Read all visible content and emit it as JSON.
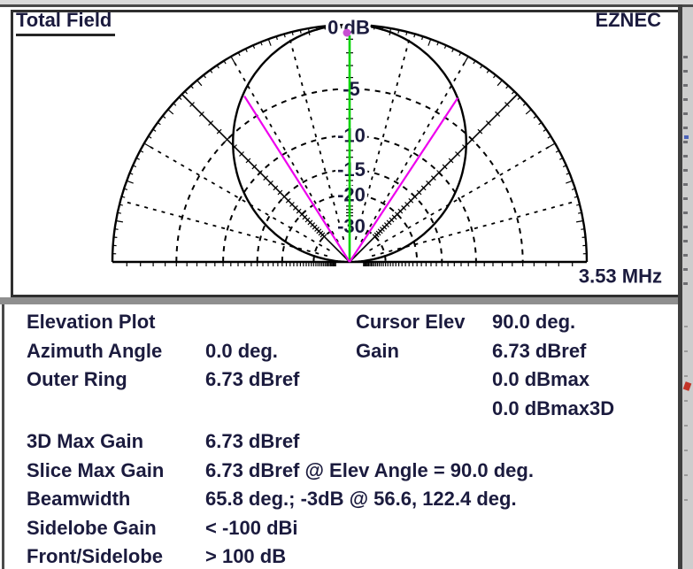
{
  "window": {
    "plot_title": "Total Field",
    "brand": "EZNEC"
  },
  "colors": {
    "text": "#1b1b3e",
    "plot_line": "#000000",
    "cursor_line": "#00d400",
    "cursor_marker": "#c84fd2",
    "beamwidth_line": "#ee00ee"
  },
  "chart_data": {
    "type": "polar-elevation-pattern",
    "title": "Total Field",
    "frequency_label": "3.53 MHz",
    "outer_ring_db_label": "0 dB",
    "ring_db": [
      -5,
      -10,
      -15,
      -20,
      -30
    ],
    "radial_scale": {
      "type": "exponential",
      "k_per_db": 0.0629
    },
    "axis_angles_deg": [
      0,
      45,
      90,
      135,
      180
    ],
    "dotted_radial_step_deg": 15,
    "db_ticks": {
      "step_db": 1,
      "max_db": 45
    },
    "outer_ring_tick_step_deg": 2,
    "pattern_model": {
      "type": "sin-power",
      "power": 1.92,
      "floor_db": -60
    },
    "pattern_samples_elev_db": [
      [
        10,
        -29.2
      ],
      [
        20,
        -17.9
      ],
      [
        30,
        -11.6
      ],
      [
        40,
        -7.4
      ],
      [
        50,
        -4.4
      ],
      [
        56.6,
        -3.0
      ],
      [
        60,
        -2.4
      ],
      [
        70,
        -1.0
      ],
      [
        80,
        -0.3
      ],
      [
        90,
        0.0
      ],
      [
        100,
        -0.3
      ],
      [
        110,
        -1.0
      ],
      [
        120,
        -2.4
      ],
      [
        122.4,
        -3.0
      ],
      [
        130,
        -4.4
      ],
      [
        140,
        -7.4
      ],
      [
        150,
        -11.6
      ],
      [
        160,
        -17.9
      ],
      [
        170,
        -29.2
      ]
    ],
    "cursor": {
      "elev_deg": 90.0,
      "gain_db_rel_max": 0.0
    },
    "beamwidth": {
      "width_deg": 65.8,
      "minus3db_elev_deg": [
        56.6,
        122.4
      ]
    },
    "outer_ring_gain": "6.73 dBref"
  },
  "info_panel": {
    "top_left_rows": [
      {
        "label": "Elevation Plot",
        "value": ""
      },
      {
        "label": "Azimuth Angle",
        "value": "0.0 deg."
      },
      {
        "label": "Outer Ring",
        "value": "6.73 dBref"
      }
    ],
    "top_right_rows": [
      {
        "label": "Cursor Elev",
        "value": "90.0 deg."
      },
      {
        "label": "Gain",
        "value": "6.73 dBref"
      },
      {
        "label": "",
        "value": "0.0 dBmax"
      },
      {
        "label": "",
        "value": "0.0 dBmax3D"
      }
    ],
    "bottom_rows": [
      {
        "label": "3D Max Gain",
        "value": "6.73 dBref"
      },
      {
        "label": "Slice Max Gain",
        "value": "6.73 dBref @ Elev Angle = 90.0 deg."
      },
      {
        "label": "Beamwidth",
        "value": "65.8 deg.; -3dB @ 56.6, 122.4 deg."
      },
      {
        "label": "Sidelobe Gain",
        "value": "< -100 dBi"
      },
      {
        "label": "Front/Sidelobe",
        "value": "> 100 dB"
      }
    ]
  }
}
